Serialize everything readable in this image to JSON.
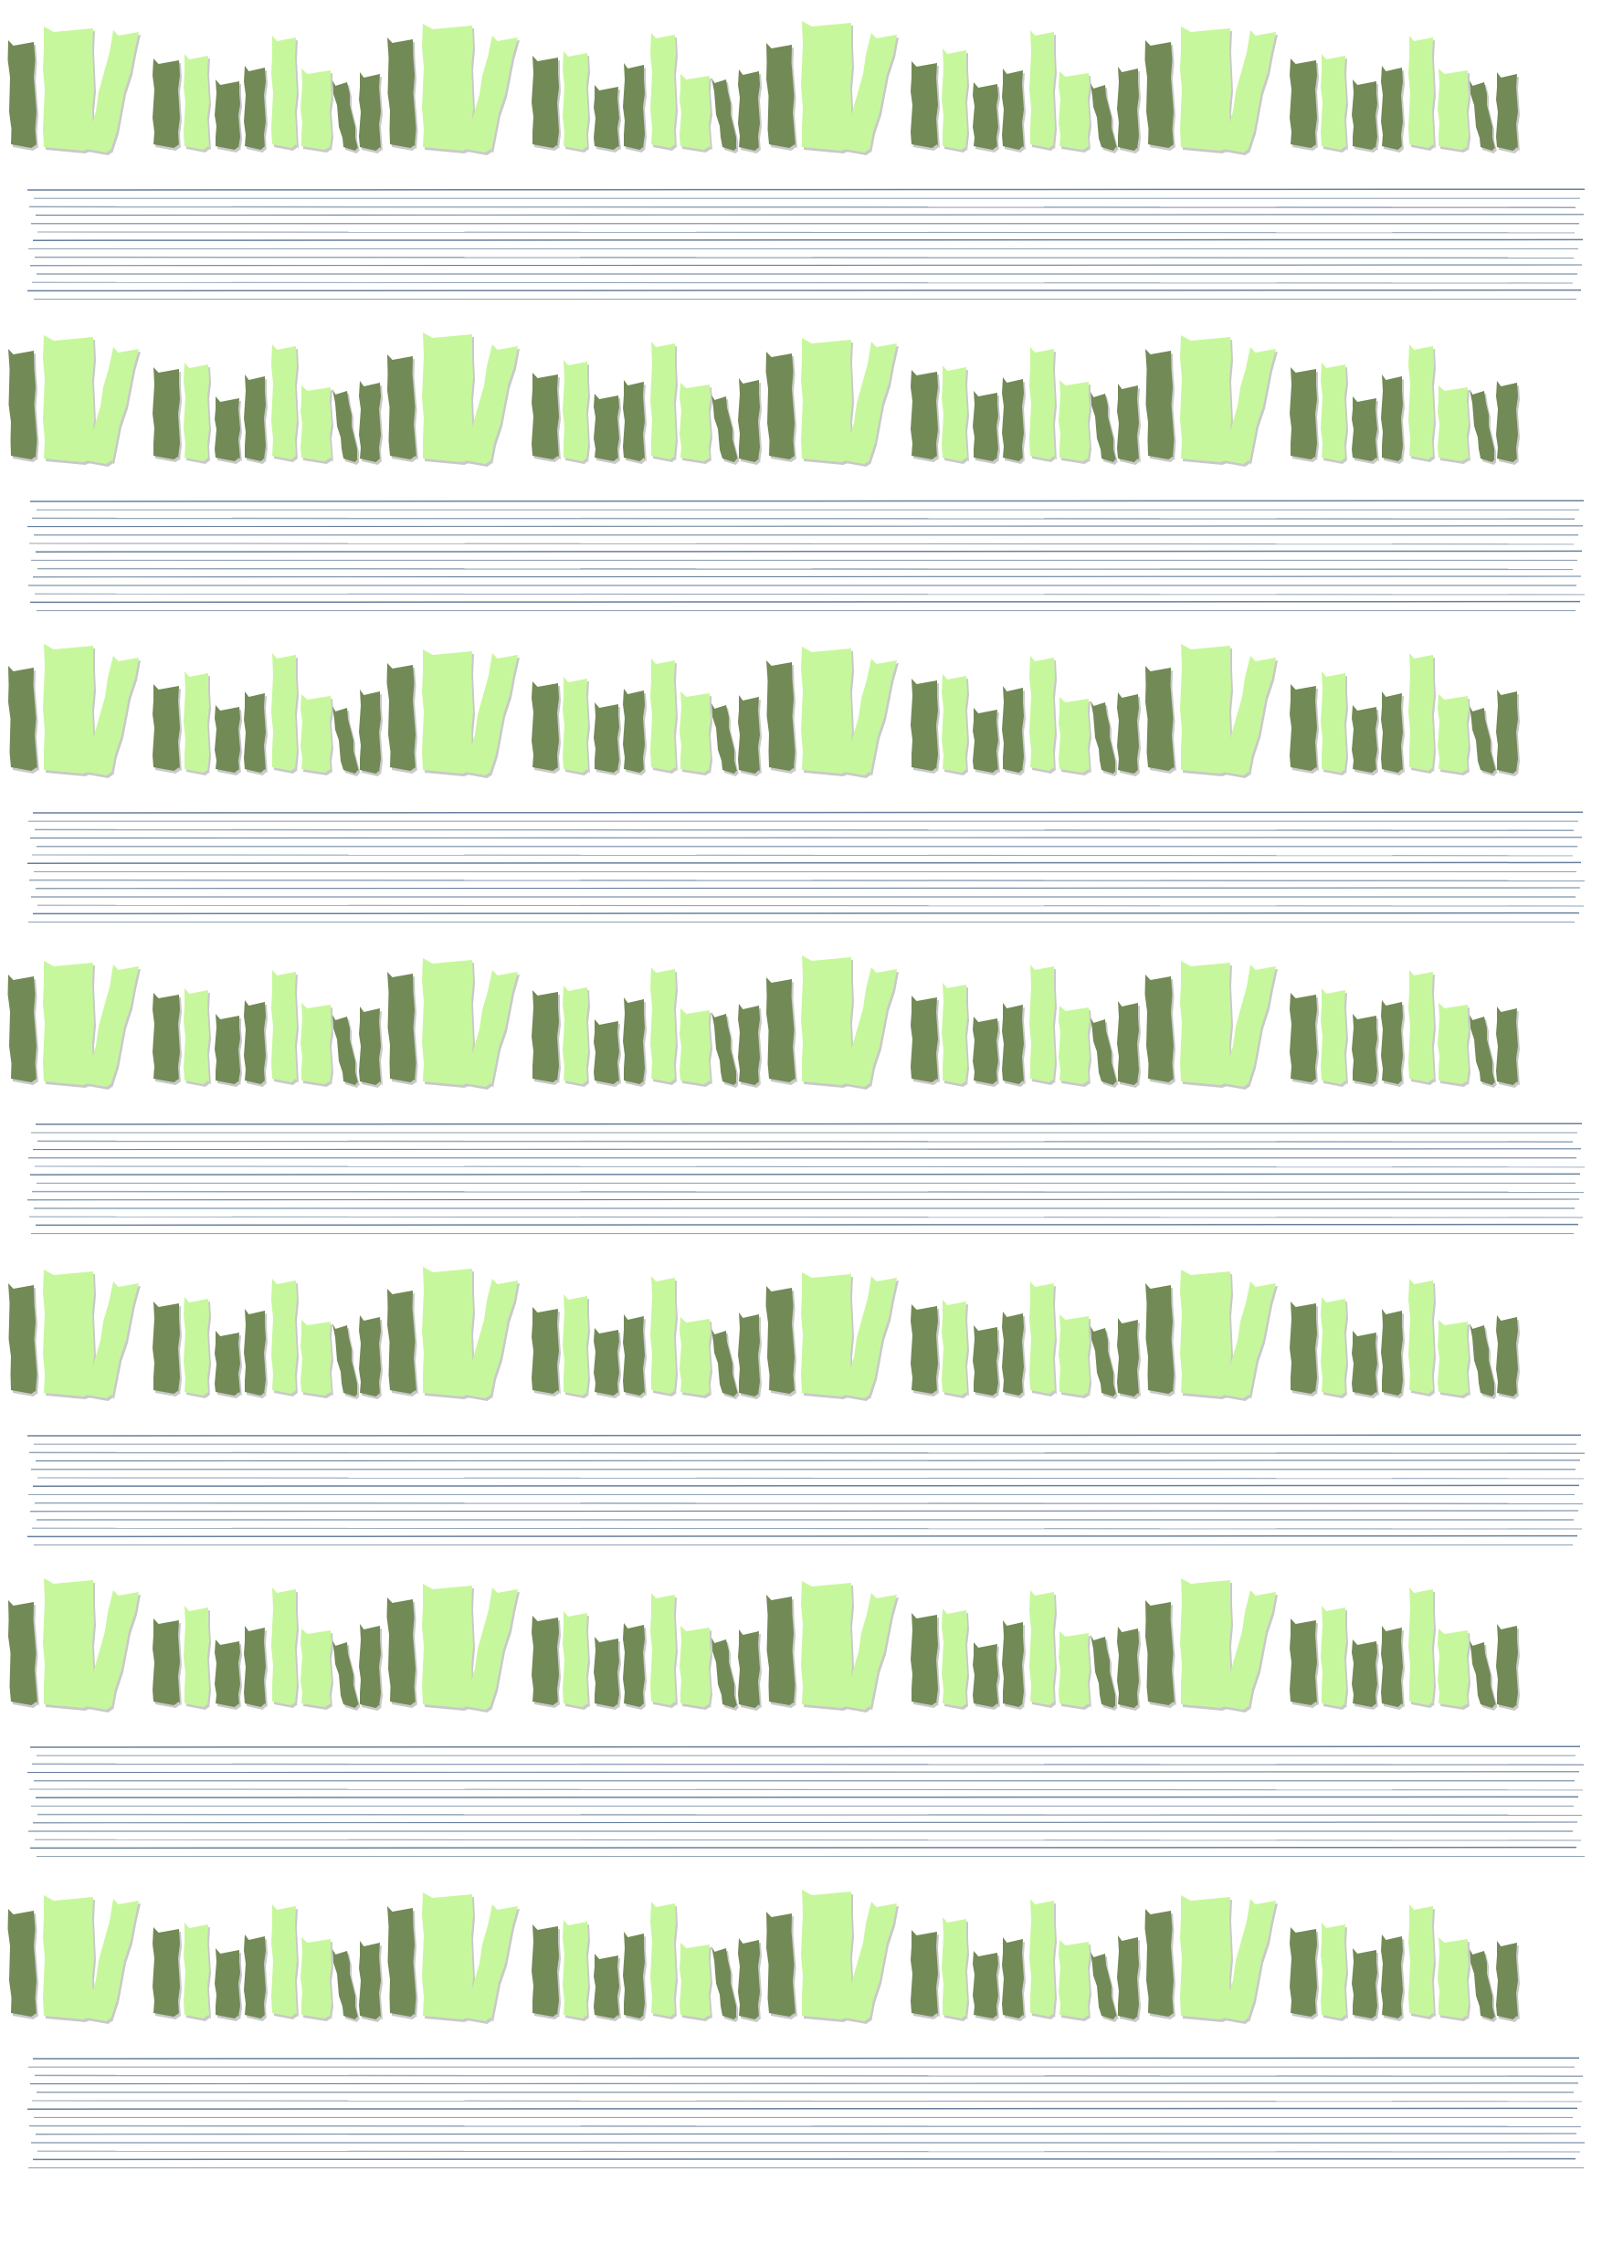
{
  "page": {
    "background": "#ffffff"
  },
  "palette": {
    "book_dark": "#728a56",
    "book_light": "#c7f79c",
    "book_shadow": "#c9c9c9",
    "line_color": "#4d6a8a"
  },
  "pattern": {
    "shelf_rows": 7,
    "book_groups_per_row": 4,
    "lines_per_band": 14,
    "icon": "bookshelf-row-icon"
  }
}
